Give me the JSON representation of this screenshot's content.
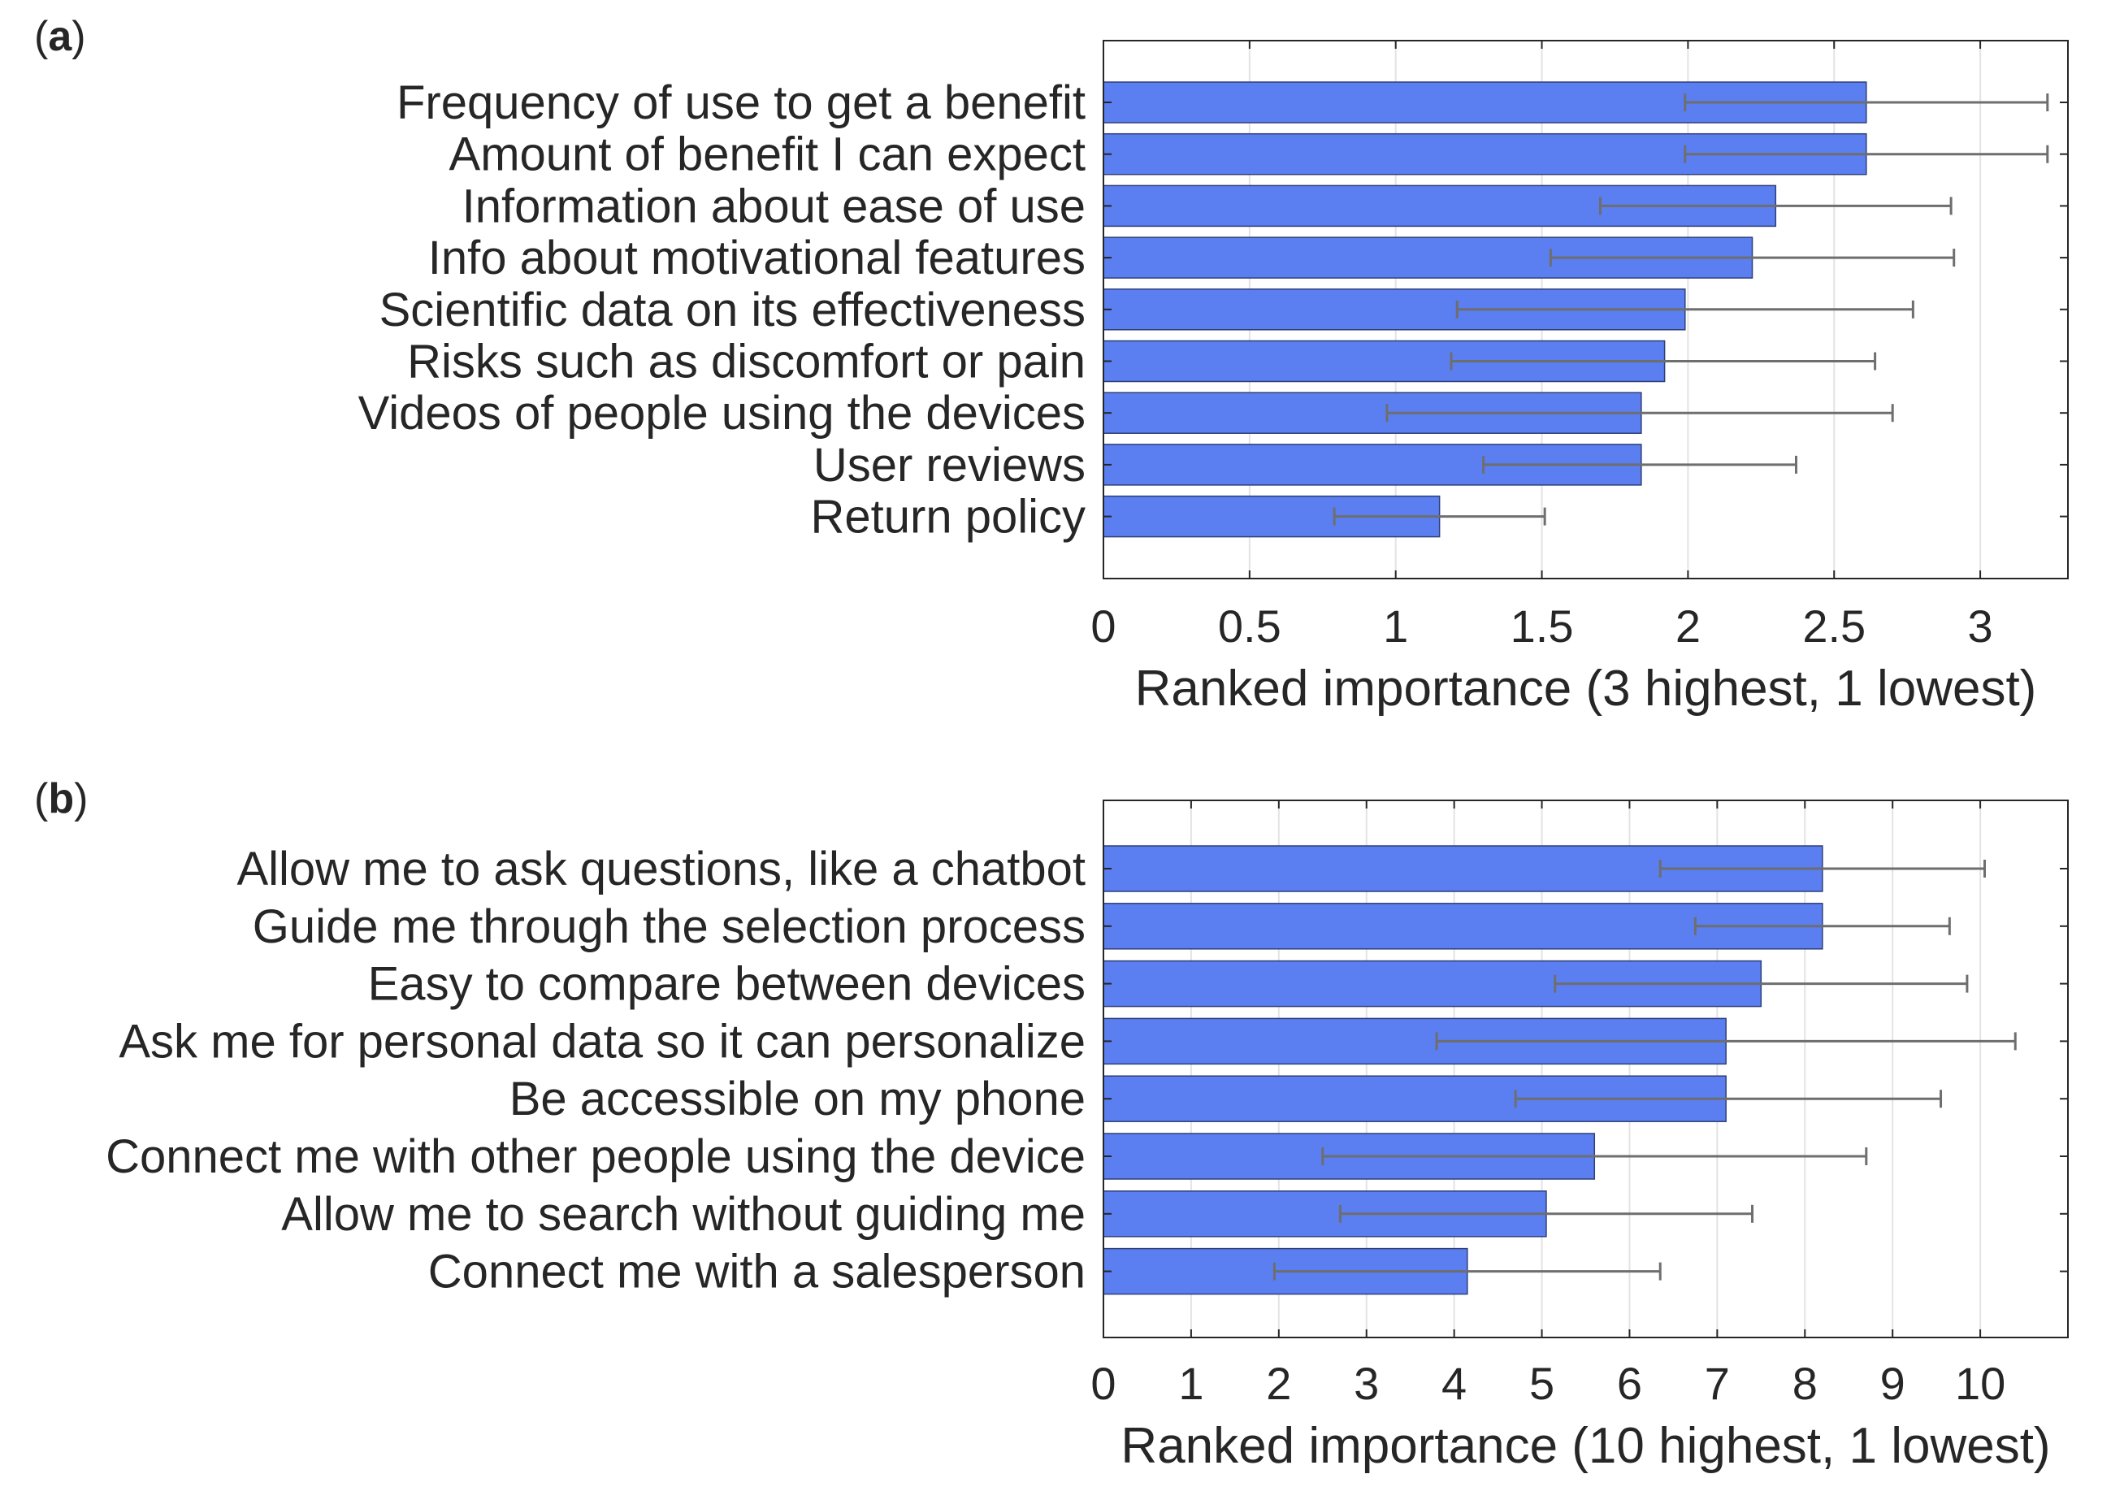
{
  "chart_data": [
    {
      "type": "bar",
      "orientation": "horizontal",
      "panel_label": "a",
      "title": "",
      "categories": [
        "Frequency of use to get a benefit",
        "Amount of benefit I can expect",
        "Information about ease of use",
        "Info about motivational features",
        "Scientific data on its effectiveness",
        "Risks such as discomfort or pain",
        "Videos of people using the devices",
        "User reviews",
        "Return policy"
      ],
      "values": [
        2.61,
        2.61,
        2.3,
        2.22,
        1.99,
        1.92,
        1.84,
        1.84,
        1.15
      ],
      "error_low": [
        1.99,
        1.99,
        1.7,
        1.53,
        1.21,
        1.19,
        0.97,
        1.3,
        0.79
      ],
      "error_high": [
        3.23,
        3.23,
        2.9,
        2.91,
        2.77,
        2.64,
        2.7,
        2.37,
        1.51
      ],
      "xlabel": "Ranked importance (3 highest, 1 lowest)",
      "ylabel": "",
      "xlim": [
        0,
        3.3
      ],
      "xticks": [
        "0",
        "0.5",
        "1",
        "1.5",
        "2",
        "2.5",
        "3"
      ],
      "tick_values": [
        0,
        0.5,
        1,
        1.5,
        2,
        2.5,
        3
      ],
      "grid": "vertical",
      "bar_color": "#5b7ff0",
      "error_color": "#6e6e6e"
    },
    {
      "type": "bar",
      "orientation": "horizontal",
      "panel_label": "b",
      "title": "",
      "categories": [
        "Allow me to ask questions, like a chatbot",
        "Guide me through the selection process",
        "Easy to compare between devices",
        "Ask me for personal data so it can personalize",
        "Be accessible on my phone",
        "Connect me with other people using the device",
        "Allow me to search without guiding me",
        "Connect me with a salesperson"
      ],
      "values": [
        8.2,
        8.2,
        7.5,
        7.1,
        7.1,
        5.6,
        5.05,
        4.15
      ],
      "error_low": [
        6.35,
        6.75,
        5.15,
        3.8,
        4.7,
        2.5,
        2.7,
        1.95
      ],
      "error_high": [
        10.05,
        9.65,
        9.85,
        10.4,
        9.55,
        8.7,
        7.4,
        6.35
      ],
      "xlabel": "Ranked importance (10 highest, 1 lowest)",
      "ylabel": "",
      "xlim": [
        0,
        11
      ],
      "xticks": [
        "0",
        "1",
        "2",
        "3",
        "4",
        "5",
        "6",
        "7",
        "8",
        "9",
        "10"
      ],
      "tick_values": [
        0,
        1,
        2,
        3,
        4,
        5,
        6,
        7,
        8,
        9,
        10
      ],
      "grid": "vertical",
      "bar_color": "#5b7ff0",
      "error_color": "#6e6e6e"
    }
  ]
}
